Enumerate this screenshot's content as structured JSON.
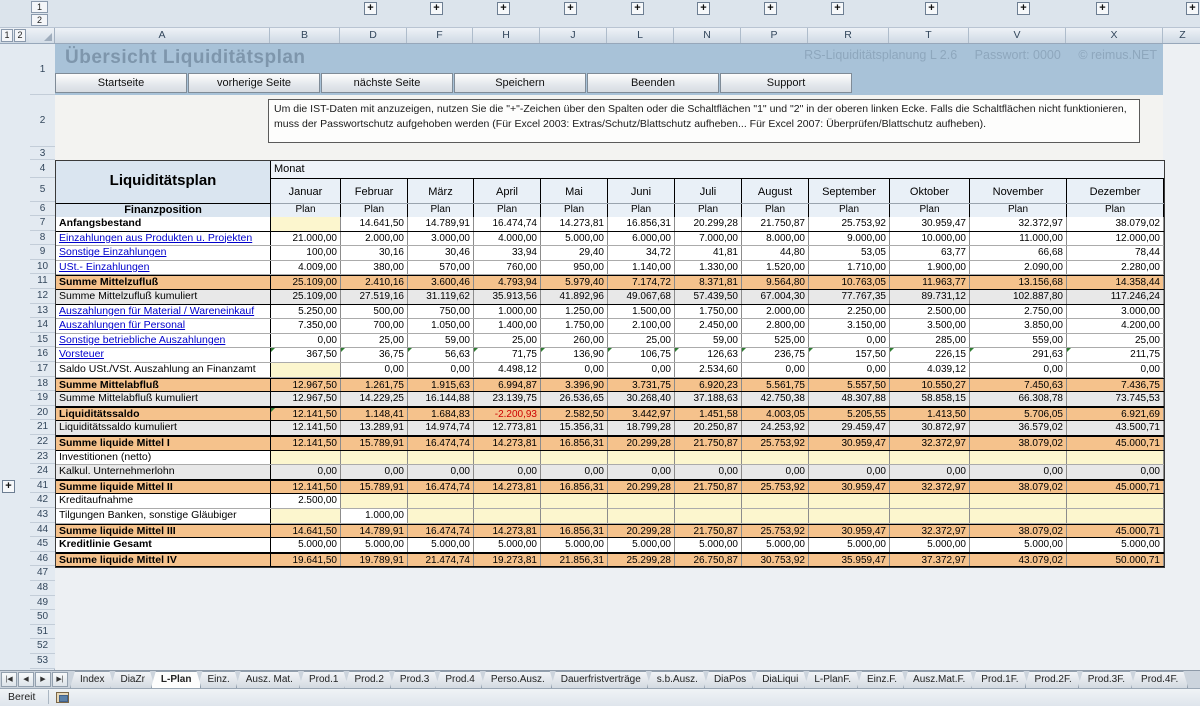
{
  "chrome": {
    "outline_levels": [
      "1",
      "2"
    ],
    "plus_label": "+",
    "column_letters": [
      "A",
      "B",
      "D",
      "F",
      "H",
      "J",
      "L",
      "N",
      "P",
      "R",
      "T",
      "V",
      "X",
      "Z"
    ],
    "status": "Bereit",
    "tab_nav": [
      "|◀",
      "◀",
      "▶",
      "▶|"
    ],
    "sheet_tabs": [
      "Index",
      "DiaZr",
      "L-Plan",
      "Einz.",
      "Ausz. Mat.",
      "Prod.1",
      "Prod.2",
      "Prod.3",
      "Prod.4",
      "Perso.Ausz.",
      "Dauerfristverträge",
      "s.b.Ausz.",
      "DiaPos",
      "DiaLiqui",
      "L-PlanF.",
      "Einz.F.",
      "Ausz.Mat.F.",
      "Prod.1F.",
      "Prod.2F.",
      "Prod.3F.",
      "Prod.4F."
    ],
    "active_tab": "L-Plan",
    "empty_row_nums": [
      47,
      48,
      49,
      50,
      51,
      52,
      53
    ]
  },
  "header": {
    "title": "Übersicht Liquiditätsplan",
    "app_info": "RS-Liquiditätsplanung L 2.6",
    "password": "Passwort: 0000",
    "copyright": "© reimus.NET",
    "buttons": [
      "Startseite",
      "vorherige Seite",
      "nächste Seite",
      "Speichern",
      "Beenden",
      "Support"
    ],
    "note": "Um die IST-Daten  mit anzuzeigen, nutzen Sie die \"+\"-Zeichen über den Spalten oder die Schaltflächen \"1\" und \"2\" in der oberen linken Ecke. Falls die Schaltflächen nicht funktionieren,  muss der Passwortschutz aufgehoben  werden  (Für Excel 2003: Extras/Schutz/Blattschutz aufheben...  Für Excel 2007: Überprüfen/Blattschutz  aufheben)."
  },
  "table": {
    "title": "Liquiditätsplan",
    "monat_label": "Monat",
    "finanzposition_label": "Finanzposition",
    "plan_label": "Plan",
    "months": [
      "Januar",
      "Februar",
      "März",
      "April",
      "Mai",
      "Juni",
      "Juli",
      "August",
      "September",
      "Oktober",
      "November",
      "Dezember"
    ],
    "rows": [
      {
        "num": 7,
        "label": "Anfangsbestand",
        "style": "bold",
        "cells": [
          null,
          "14.641,50",
          "14.789,91",
          "16.474,74",
          "14.273,81",
          "16.856,31",
          "20.299,28",
          "21.750,87",
          "25.753,92",
          "30.959,47",
          "32.372,97",
          "38.079,02"
        ]
      },
      {
        "num": 8,
        "label": "Einzahlungen aus Produkten u. Projekten",
        "style": "link",
        "cells": [
          "21.000,00",
          "2.000,00",
          "3.000,00",
          "4.000,00",
          "5.000,00",
          "6.000,00",
          "7.000,00",
          "8.000,00",
          "9.000,00",
          "10.000,00",
          "11.000,00",
          "12.000,00"
        ]
      },
      {
        "num": 9,
        "label": "Sonstige Einzahlungen",
        "style": "link",
        "cells": [
          "100,00",
          "30,16",
          "30,46",
          "33,94",
          "29,40",
          "34,72",
          "41,81",
          "44,80",
          "53,05",
          "63,77",
          "66,68",
          "78,44"
        ]
      },
      {
        "num": 10,
        "label": "USt.- Einzahlungen",
        "style": "link",
        "cells": [
          "4.009,00",
          "380,00",
          "570,00",
          "760,00",
          "950,00",
          "1.140,00",
          "1.330,00",
          "1.520,00",
          "1.710,00",
          "1.900,00",
          "2.090,00",
          "2.280,00"
        ]
      },
      {
        "num": 11,
        "label": "Summe Mittelzufluß",
        "style": "sum",
        "cells": [
          "25.109,00",
          "2.410,16",
          "3.600,46",
          "4.793,94",
          "5.979,40",
          "7.174,72",
          "8.371,81",
          "9.564,80",
          "10.763,05",
          "11.963,77",
          "13.156,68",
          "14.358,44"
        ]
      },
      {
        "num": 12,
        "label": "Summe Mittelzufluß kumuliert",
        "style": "cum",
        "cells": [
          "25.109,00",
          "27.519,16",
          "31.119,62",
          "35.913,56",
          "41.892,96",
          "49.067,68",
          "57.439,50",
          "67.004,30",
          "77.767,35",
          "89.731,12",
          "102.887,80",
          "117.246,24"
        ]
      },
      {
        "num": 13,
        "label": "Auszahlungen für Material / Wareneinkauf",
        "style": "link",
        "cells": [
          "5.250,00",
          "500,00",
          "750,00",
          "1.000,00",
          "1.250,00",
          "1.500,00",
          "1.750,00",
          "2.000,00",
          "2.250,00",
          "2.500,00",
          "2.750,00",
          "3.000,00"
        ]
      },
      {
        "num": 14,
        "label": "Auszahlungen für Personal",
        "style": "link",
        "cells": [
          "7.350,00",
          "700,00",
          "1.050,00",
          "1.400,00",
          "1.750,00",
          "2.100,00",
          "2.450,00",
          "2.800,00",
          "3.150,00",
          "3.500,00",
          "3.850,00",
          "4.200,00"
        ]
      },
      {
        "num": 15,
        "label": "Sonstige betriebliche Auszahlungen",
        "style": "link",
        "cells": [
          "0,00",
          "25,00",
          "59,00",
          "25,00",
          "260,00",
          "25,00",
          "59,00",
          "525,00",
          "0,00",
          "285,00",
          "559,00",
          "25,00"
        ]
      },
      {
        "num": 16,
        "label": "Vorsteuer",
        "style": "link",
        "tri": [
          0,
          1,
          2,
          3,
          4,
          5,
          6,
          7,
          8,
          9,
          10,
          11
        ],
        "cells": [
          "367,50",
          "36,75",
          "56,63",
          "71,75",
          "136,90",
          "106,75",
          "126,63",
          "236,75",
          "157,50",
          "226,15",
          "291,63",
          "211,75"
        ]
      },
      {
        "num": 17,
        "label": "Saldo USt./VSt. Auszahlung an Finanzamt",
        "style": "plain",
        "cells": [
          null,
          "0,00",
          "0,00",
          "4.498,12",
          "0,00",
          "0,00",
          "2.534,60",
          "0,00",
          "0,00",
          "4.039,12",
          "0,00",
          "0,00"
        ]
      },
      {
        "num": 18,
        "label": "Summe Mittelabfluß",
        "style": "sum",
        "cells": [
          "12.967,50",
          "1.261,75",
          "1.915,63",
          "6.994,87",
          "3.396,90",
          "3.731,75",
          "6.920,23",
          "5.561,75",
          "5.557,50",
          "10.550,27",
          "7.450,63",
          "7.436,75"
        ]
      },
      {
        "num": 19,
        "label": "Summe Mittelabfluß kumuliert",
        "style": "cum",
        "cells": [
          "12.967,50",
          "14.229,25",
          "16.144,88",
          "23.139,75",
          "26.536,65",
          "30.268,40",
          "37.188,63",
          "42.750,38",
          "48.307,88",
          "58.858,15",
          "66.308,78",
          "73.745,53"
        ]
      },
      {
        "num": 20,
        "label": "Liquiditätssaldo",
        "style": "sum",
        "tri": [
          0
        ],
        "cells": [
          "12.141,50",
          "1.148,41",
          "1.684,83",
          "-2.200,93",
          "2.582,50",
          "3.442,97",
          "1.451,58",
          "4.003,05",
          "5.205,55",
          "1.413,50",
          "5.706,05",
          "6.921,69"
        ]
      },
      {
        "num": 21,
        "label": "Liquiditätssaldo  kumuliert",
        "style": "cum",
        "cells": [
          "12.141,50",
          "13.289,91",
          "14.974,74",
          "12.773,81",
          "15.356,31",
          "18.799,28",
          "20.250,87",
          "24.253,92",
          "29.459,47",
          "30.872,97",
          "36.579,02",
          "43.500,71"
        ]
      },
      {
        "num": 22,
        "label": "Summe liquide Mittel I",
        "style": "sum",
        "cells": [
          "12.141,50",
          "15.789,91",
          "16.474,74",
          "14.273,81",
          "16.856,31",
          "20.299,28",
          "21.750,87",
          "25.753,92",
          "30.959,47",
          "32.372,97",
          "38.079,02",
          "45.000,71"
        ]
      },
      {
        "num": 23,
        "label": "Investitionen (netto)",
        "style": "plain",
        "cells": [
          null,
          null,
          null,
          null,
          null,
          null,
          null,
          null,
          null,
          null,
          null,
          null
        ]
      },
      {
        "num": 24,
        "label": "Kalkul. Unternehmerlohn",
        "style": "cum",
        "cells": [
          "0,00",
          "0,00",
          "0,00",
          "0,00",
          "0,00",
          "0,00",
          "0,00",
          "0,00",
          "0,00",
          "0,00",
          "0,00",
          "0,00"
        ]
      },
      {
        "num": 41,
        "label": "Summe liquide Mittel II",
        "style": "sum",
        "outline_plus": true,
        "cells": [
          "12.141,50",
          "15.789,91",
          "16.474,74",
          "14.273,81",
          "16.856,31",
          "20.299,28",
          "21.750,87",
          "25.753,92",
          "30.959,47",
          "32.372,97",
          "38.079,02",
          "45.000,71"
        ]
      },
      {
        "num": 42,
        "label": "Kreditaufnahme",
        "style": "plain",
        "cells": [
          "2.500,00",
          null,
          null,
          null,
          null,
          null,
          null,
          null,
          null,
          null,
          null,
          null
        ]
      },
      {
        "num": 43,
        "label": "Tilgungen Banken, sonstige Gläubiger",
        "style": "plain",
        "cells": [
          null,
          "1.000,00",
          null,
          null,
          null,
          null,
          null,
          null,
          null,
          null,
          null,
          null
        ]
      },
      {
        "num": 44,
        "label": "Summe liquide Mittel III",
        "style": "sum",
        "cells": [
          "14.641,50",
          "14.789,91",
          "16.474,74",
          "14.273,81",
          "16.856,31",
          "20.299,28",
          "21.750,87",
          "25.753,92",
          "30.959,47",
          "32.372,97",
          "38.079,02",
          "45.000,71"
        ]
      },
      {
        "num": 45,
        "label": "Kreditlinie Gesamt",
        "style": "bold",
        "cells": [
          "5.000,00",
          "5.000,00",
          "5.000,00",
          "5.000,00",
          "5.000,00",
          "5.000,00",
          "5.000,00",
          "5.000,00",
          "5.000,00",
          "5.000,00",
          "5.000,00",
          "5.000,00"
        ]
      },
      {
        "num": 46,
        "label": "Summe liquide Mittel IV",
        "style": "sum",
        "cells": [
          "19.641,50",
          "19.789,91",
          "21.474,74",
          "19.273,81",
          "21.856,31",
          "25.299,28",
          "26.750,87",
          "30.753,92",
          "35.959,47",
          "37.372,97",
          "43.079,02",
          "50.000,71"
        ]
      }
    ]
  },
  "colors": {
    "band_bg": "#A8C2D8",
    "band_title": "#7E96AC",
    "band_info": "#8EA7BD",
    "orange": "#F5C28C",
    "yellow": "#FCF6CE",
    "gray_row": "#E8E8E8",
    "link": "#0000CC",
    "negative": "#CC0000",
    "header_cell": "#DAE5F0",
    "month_cell": "#E9F0F7",
    "note_band": "#F3F3F1",
    "sheet_bg": "#EDF0F3",
    "chrome_bg": "#DCE4EC",
    "tri_green": "#2E7D32"
  }
}
